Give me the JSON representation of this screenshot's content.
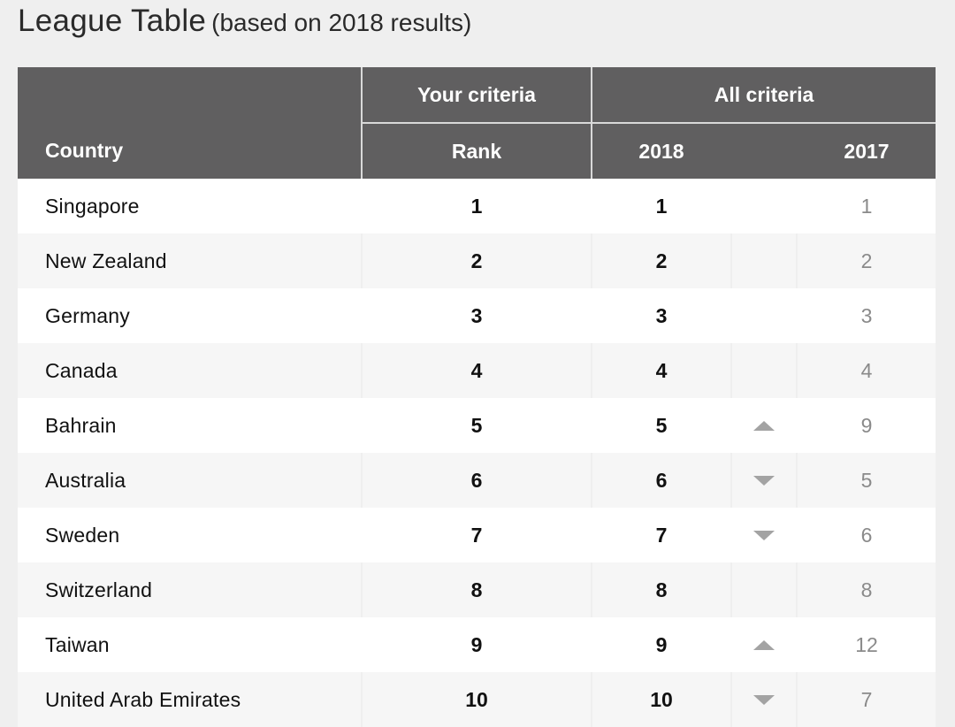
{
  "title": {
    "main": "League Table",
    "subtitle": "(based on 2018 results)"
  },
  "header": {
    "country": "Country",
    "your_criteria": "Your criteria",
    "rank": "Rank",
    "all_criteria": "All criteria",
    "year_current": "2018",
    "year_previous": "2017"
  },
  "rows": [
    {
      "country": "Singapore",
      "rank": "1",
      "rank_2018": "1",
      "trend": "none",
      "rank_2017": "1"
    },
    {
      "country": "New Zealand",
      "rank": "2",
      "rank_2018": "2",
      "trend": "none",
      "rank_2017": "2"
    },
    {
      "country": "Germany",
      "rank": "3",
      "rank_2018": "3",
      "trend": "none",
      "rank_2017": "3"
    },
    {
      "country": "Canada",
      "rank": "4",
      "rank_2018": "4",
      "trend": "none",
      "rank_2017": "4"
    },
    {
      "country": "Bahrain",
      "rank": "5",
      "rank_2018": "5",
      "trend": "up",
      "rank_2017": "9"
    },
    {
      "country": "Australia",
      "rank": "6",
      "rank_2018": "6",
      "trend": "down",
      "rank_2017": "5"
    },
    {
      "country": "Sweden",
      "rank": "7",
      "rank_2018": "7",
      "trend": "down",
      "rank_2017": "6"
    },
    {
      "country": "Switzerland",
      "rank": "8",
      "rank_2018": "8",
      "trend": "none",
      "rank_2017": "8"
    },
    {
      "country": "Taiwan",
      "rank": "9",
      "rank_2018": "9",
      "trend": "up",
      "rank_2017": "12"
    },
    {
      "country": "United Arab Emirates",
      "rank": "10",
      "rank_2018": "10",
      "trend": "down",
      "rank_2017": "7"
    }
  ],
  "colors": {
    "header_bg": "#605f60",
    "trend_arrow": "#a3a3a3",
    "previous_rank_text": "#8a8a8a"
  }
}
